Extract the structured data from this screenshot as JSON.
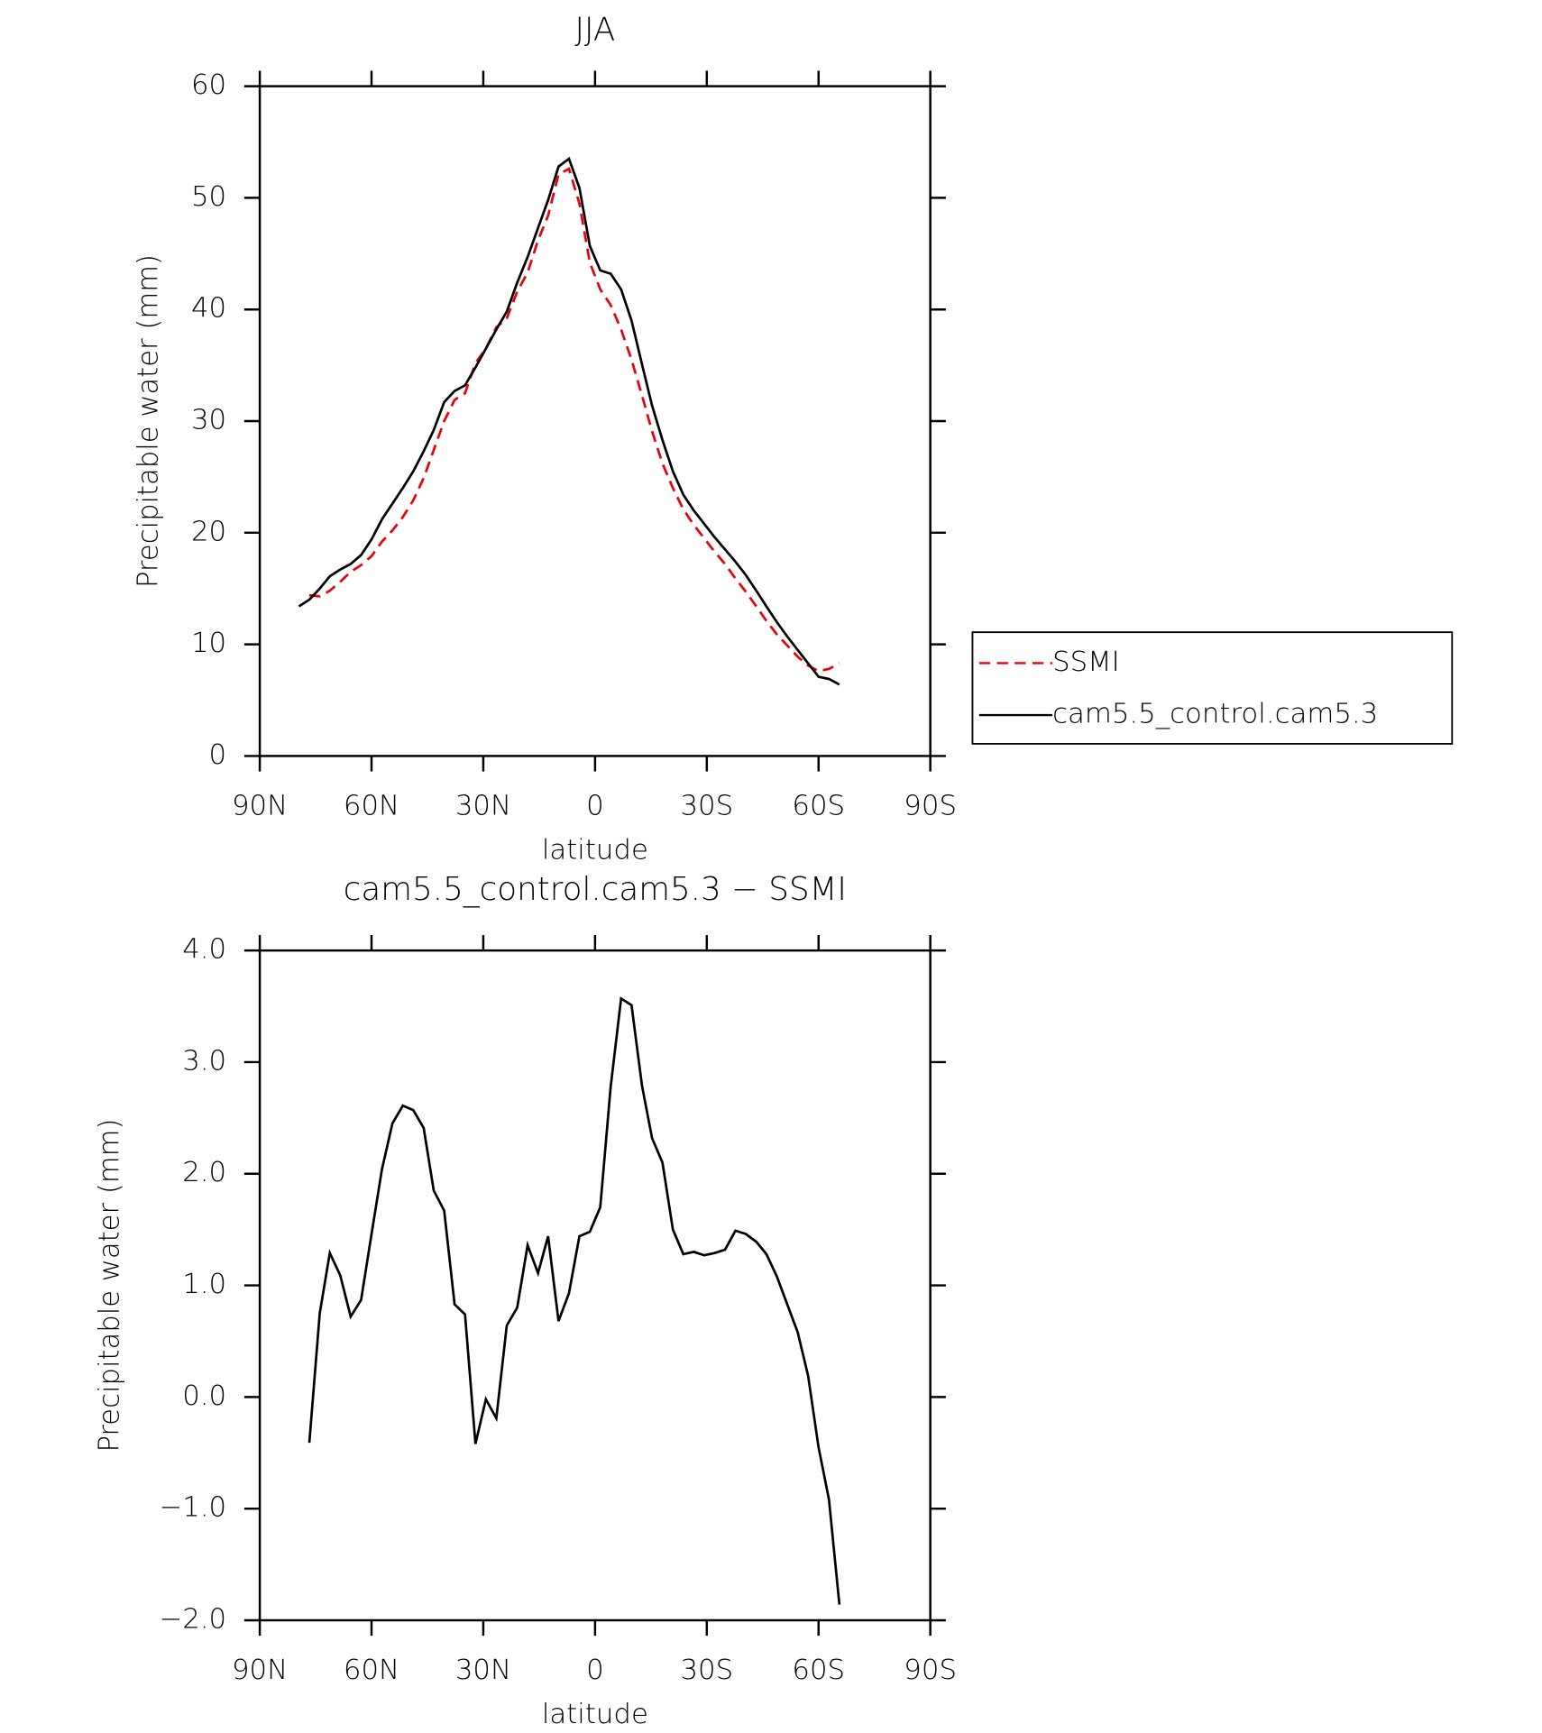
{
  "chart_data": [
    {
      "type": "line",
      "title": "JJA",
      "xlabel": "latitude",
      "ylabel": "Precipitable water (mm)",
      "x": [
        79.5,
        76.7,
        73.9,
        71.2,
        68.4,
        65.6,
        62.8,
        60.0,
        57.2,
        54.4,
        51.6,
        48.8,
        46.0,
        43.3,
        40.5,
        37.7,
        34.9,
        32.1,
        29.3,
        26.5,
        23.7,
        20.9,
        18.1,
        15.3,
        12.6,
        9.8,
        7.0,
        4.2,
        1.4,
        -1.4,
        -4.2,
        -7.0,
        -9.8,
        -12.6,
        -15.3,
        -18.1,
        -20.9,
        -23.7,
        -26.5,
        -29.3,
        -32.1,
        -34.9,
        -37.7,
        -40.5,
        -43.3,
        -46.0,
        -48.8,
        -51.6,
        -54.4,
        -57.2,
        -60.0,
        -62.8,
        -65.6
      ],
      "series": [
        {
          "name": "SSMI",
          "color": "#e8000b",
          "dash": true,
          "values": [
            null,
            14.4,
            14.3,
            14.8,
            15.6,
            16.5,
            17.1,
            17.9,
            19.2,
            20.2,
            21.4,
            22.9,
            24.9,
            27.4,
            30.0,
            31.9,
            32.5,
            35.2,
            36.5,
            38.4,
            39.2,
            41.6,
            43.3,
            46.2,
            48.4,
            52.1,
            52.6,
            49.5,
            44.2,
            41.8,
            40.4,
            38.2,
            35.5,
            32.3,
            29.1,
            26.2,
            24.0,
            22.1,
            20.7,
            19.5,
            18.3,
            17.2,
            15.9,
            14.7,
            13.4,
            12.1,
            10.9,
            9.9,
            8.9,
            8.1,
            7.6,
            7.8,
            8.3
          ]
        },
        {
          "name": "cam5.5_control.cam5.3",
          "color": "#000000",
          "dash": false,
          "values": [
            13.4,
            14.0,
            15.0,
            16.1,
            16.7,
            17.2,
            18.0,
            19.4,
            21.2,
            22.6,
            24.0,
            25.5,
            27.3,
            29.2,
            31.7,
            32.7,
            33.2,
            34.8,
            36.5,
            38.2,
            39.8,
            42.4,
            44.7,
            47.3,
            49.8,
            52.8,
            53.5,
            50.9,
            45.7,
            43.5,
            43.2,
            41.8,
            39.0,
            35.1,
            31.4,
            28.3,
            25.5,
            23.4,
            22.0,
            20.8,
            19.6,
            18.5,
            17.4,
            16.2,
            14.8,
            13.4,
            12.0,
            10.7,
            9.5,
            8.3,
            7.1,
            6.9,
            6.4
          ]
        }
      ],
      "xlim": [
        90,
        -90
      ],
      "ylim": [
        0,
        60
      ],
      "xticks": [
        {
          "value": 90,
          "label": "90N"
        },
        {
          "value": 60,
          "label": "60N"
        },
        {
          "value": 30,
          "label": "30N"
        },
        0,
        {
          "value": -30,
          "label": "30S"
        },
        {
          "value": -60,
          "label": "60S"
        },
        {
          "value": -90,
          "label": "90S"
        }
      ],
      "yticks": [
        0,
        10,
        20,
        30,
        40,
        50,
        60
      ],
      "legend": "right"
    },
    {
      "type": "line",
      "title": "cam5.5_control.cam5.3 − SSMI",
      "xlabel": "latitude",
      "ylabel": "Precipitable water (mm)",
      "x": [
        76.7,
        73.9,
        71.2,
        68.4,
        65.6,
        62.8,
        60.0,
        57.2,
        54.4,
        51.6,
        48.8,
        46.0,
        43.3,
        40.5,
        37.7,
        34.9,
        32.1,
        29.3,
        26.5,
        23.7,
        20.9,
        18.1,
        15.3,
        12.6,
        9.8,
        7.0,
        4.2,
        1.4,
        -1.4,
        -4.2,
        -7.0,
        -9.8,
        -12.6,
        -15.3,
        -18.1,
        -20.9,
        -23.7,
        -26.5,
        -29.3,
        -32.1,
        -34.9,
        -37.7,
        -40.5,
        -43.3,
        -46.0,
        -48.8,
        -51.6,
        -54.4,
        -57.2,
        -60.0,
        -62.8,
        -65.6
      ],
      "series": [
        {
          "color": "#000000",
          "dash": false,
          "values": [
            -0.41,
            0.75,
            1.29,
            1.09,
            0.72,
            0.87,
            1.46,
            2.04,
            2.45,
            2.61,
            2.57,
            2.41,
            1.85,
            1.67,
            0.83,
            0.74,
            -0.42,
            -0.02,
            -0.19,
            0.64,
            0.8,
            1.36,
            1.11,
            1.44,
            0.68,
            0.93,
            1.44,
            1.48,
            1.7,
            2.78,
            3.57,
            3.51,
            2.79,
            2.32,
            2.1,
            1.5,
            1.28,
            1.3,
            1.27,
            1.29,
            1.32,
            1.49,
            1.46,
            1.39,
            1.28,
            1.08,
            0.83,
            0.58,
            0.19,
            -0.45,
            -0.92,
            -1.86
          ]
        }
      ],
      "xlim": [
        90,
        -90
      ],
      "ylim": [
        -2,
        4
      ],
      "xticks": [
        {
          "value": 90,
          "label": "90N"
        },
        {
          "value": 60,
          "label": "60N"
        },
        {
          "value": 30,
          "label": "30N"
        },
        0,
        {
          "value": -30,
          "label": "30S"
        },
        {
          "value": -60,
          "label": "60S"
        },
        {
          "value": -90,
          "label": "90S"
        }
      ],
      "yticks": [
        {
          "value": -2,
          "label": "−2.0"
        },
        {
          "value": -1,
          "label": "−1.0"
        },
        {
          "value": 0,
          "label": "0.0"
        },
        {
          "value": 1,
          "label": "1.0"
        },
        {
          "value": 2,
          "label": "2.0"
        },
        {
          "value": 3,
          "label": "3.0"
        },
        {
          "value": 4,
          "label": "4.0"
        }
      ]
    }
  ]
}
